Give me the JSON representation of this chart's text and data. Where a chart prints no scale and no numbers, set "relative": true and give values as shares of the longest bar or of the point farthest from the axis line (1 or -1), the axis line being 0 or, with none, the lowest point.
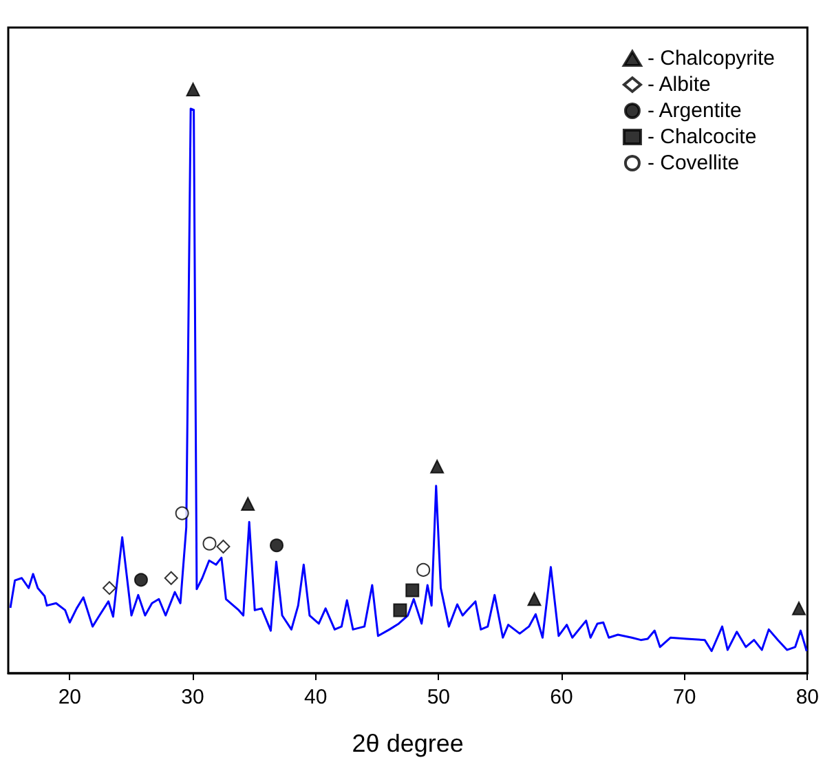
{
  "chart_data": {
    "type": "line",
    "xlabel": "2θ degree",
    "relative": true,
    "xlim": [
      15,
      80
    ],
    "xticks": [
      20,
      30,
      40,
      50,
      60,
      70,
      80
    ],
    "grid": false,
    "legend": "top right",
    "tick_labels": "x",
    "series": [
      {
        "color": "#0000ff",
        "marker": "none",
        "line_style": "solid",
        "x": [
          15.17,
          15.54,
          16.1,
          16.66,
          17.02,
          17.4,
          17.96,
          18.14,
          18.89,
          19.63,
          20.0,
          20.56,
          21.11,
          21.86,
          22.42,
          23.15,
          23.53,
          24.27,
          25.02,
          25.57,
          26.13,
          26.69,
          27.25,
          27.8,
          28.55,
          29.0,
          29.48,
          29.84,
          30.09,
          30.33,
          30.78,
          31.34,
          31.9,
          32.34,
          32.71,
          33.75,
          34.12,
          34.6,
          35.05,
          35.61,
          36.35,
          36.8,
          37.28,
          38.03,
          38.58,
          39.03,
          39.51,
          40.26,
          40.81,
          41.55,
          42.11,
          42.55,
          43.04,
          43.97,
          44.6,
          45.08,
          46.01,
          46.76,
          47.5,
          47.98,
          48.62,
          49.1,
          49.43,
          49.8,
          50.18,
          50.84,
          51.52,
          51.96,
          52.33,
          53.0,
          53.44,
          54.0,
          54.56,
          55.23,
          55.67,
          56.6,
          57.35,
          57.9,
          58.46,
          59.13,
          59.77,
          60.43,
          60.88,
          62.0,
          62.36,
          62.92,
          63.4,
          63.85,
          64.59,
          65.71,
          66.45,
          67.01,
          67.57,
          68.01,
          68.86,
          70.17,
          71.65,
          72.21,
          73.07,
          73.51,
          74.26,
          74.99,
          75.66,
          76.3,
          76.86,
          77.6,
          78.34,
          79.01,
          79.45,
          79.94
        ],
        "values": [
          0.112,
          0.159,
          0.163,
          0.146,
          0.17,
          0.146,
          0.132,
          0.116,
          0.12,
          0.108,
          0.087,
          0.111,
          0.13,
          0.08,
          0.099,
          0.123,
          0.097,
          0.233,
          0.099,
          0.134,
          0.099,
          0.12,
          0.127,
          0.099,
          0.139,
          0.12,
          0.25,
          0.967,
          0.965,
          0.144,
          0.163,
          0.193,
          0.186,
          0.198,
          0.127,
          0.108,
          0.099,
          0.259,
          0.108,
          0.111,
          0.073,
          0.191,
          0.099,
          0.075,
          0.116,
          0.186,
          0.099,
          0.085,
          0.111,
          0.075,
          0.08,
          0.125,
          0.075,
          0.08,
          0.151,
          0.064,
          0.075,
          0.085,
          0.099,
          0.127,
          0.085,
          0.151,
          0.116,
          0.321,
          0.146,
          0.08,
          0.118,
          0.099,
          0.108,
          0.123,
          0.075,
          0.08,
          0.134,
          0.061,
          0.083,
          0.068,
          0.08,
          0.101,
          0.061,
          0.182,
          0.064,
          0.083,
          0.061,
          0.09,
          0.061,
          0.085,
          0.087,
          0.061,
          0.066,
          0.061,
          0.057,
          0.059,
          0.073,
          0.045,
          0.061,
          0.059,
          0.057,
          0.038,
          0.08,
          0.04,
          0.071,
          0.045,
          0.057,
          0.04,
          0.075,
          0.057,
          0.04,
          0.045,
          0.073,
          0.038
        ]
      },
      {
        "type": "scatter",
        "name": "- Chalcopyrite",
        "color": "#000000",
        "marker": "triangle",
        "x": [
          30.03,
          34.49,
          49.88,
          57.79,
          79.31
        ],
        "values": [
          1.0,
          0.29,
          0.354,
          0.127,
          0.111
        ]
      },
      {
        "type": "scatter",
        "name": "- Albite",
        "color": "#ffffff",
        "marker": "diamond",
        "x": [
          23.23,
          28.25,
          32.49
        ],
        "values": [
          0.146,
          0.163,
          0.217
        ]
      },
      {
        "type": "scatter",
        "name": "- Argentite",
        "color": "#000000",
        "marker": "circle",
        "x": [
          25.8,
          36.83
        ],
        "values": [
          0.16,
          0.219
        ]
      },
      {
        "type": "scatter",
        "name": "- Chalcocite",
        "color": "#000000",
        "marker": "square",
        "x": [
          46.87,
          47.87
        ],
        "values": [
          0.108,
          0.142
        ]
      },
      {
        "type": "scatter",
        "name": "- Covellite",
        "color": "#ffffff",
        "marker": "circle",
        "x": [
          29.14,
          31.37,
          48.76
        ],
        "values": [
          0.274,
          0.222,
          0.177
        ]
      }
    ]
  }
}
